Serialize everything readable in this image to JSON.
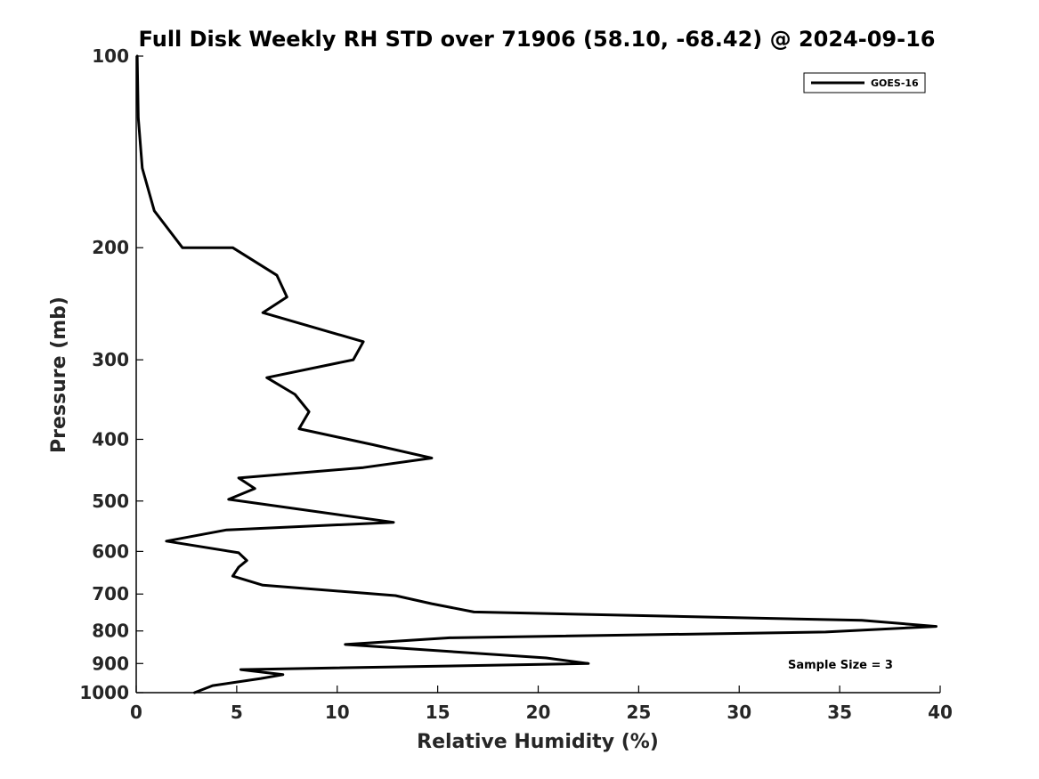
{
  "chart_data": {
    "type": "line",
    "title": "Full Disk Weekly RH STD over 71906 (58.10, -68.42) @ 2024-09-16",
    "xlabel": "Relative Humidity (%)",
    "ylabel": "Pressure (mb)",
    "xlim": [
      0,
      40
    ],
    "ylim": [
      100,
      1000
    ],
    "yscale": "log",
    "y_reversed": true,
    "xticks": [
      0,
      5,
      10,
      15,
      20,
      25,
      30,
      35,
      40
    ],
    "yticks": [
      100,
      200,
      300,
      400,
      500,
      600,
      700,
      800,
      900,
      1000
    ],
    "legend_position": "top-right",
    "grid": false,
    "series": [
      {
        "name": "GOES-16",
        "color": "#000000",
        "points": [
          [
            0.05,
            100
          ],
          [
            0.1,
            125
          ],
          [
            0.3,
            150
          ],
          [
            0.9,
            175
          ],
          [
            2.3,
            200
          ],
          [
            4.8,
            200
          ],
          [
            7.0,
            221
          ],
          [
            7.5,
            239
          ],
          [
            6.3,
            253
          ],
          [
            11.3,
            281
          ],
          [
            10.8,
            300
          ],
          [
            6.5,
            320
          ],
          [
            7.9,
            340
          ],
          [
            8.6,
            362
          ],
          [
            8.1,
            385
          ],
          [
            11.8,
            408
          ],
          [
            14.7,
            428
          ],
          [
            11.3,
            443
          ],
          [
            5.1,
            460
          ],
          [
            5.9,
            478
          ],
          [
            4.6,
            497
          ],
          [
            12.8,
            540
          ],
          [
            4.5,
            555
          ],
          [
            1.5,
            578
          ],
          [
            5.1,
            603
          ],
          [
            5.5,
            620
          ],
          [
            5.1,
            635
          ],
          [
            4.8,
            656
          ],
          [
            6.3,
            678
          ],
          [
            12.9,
            704
          ],
          [
            14.7,
            725
          ],
          [
            16.8,
            747
          ],
          [
            36.1,
            770
          ],
          [
            39.8,
            787
          ],
          [
            34.3,
            803
          ],
          [
            15.6,
            820
          ],
          [
            10.4,
            840
          ],
          [
            20.4,
            882
          ],
          [
            22.5,
            900
          ],
          [
            5.2,
            920
          ],
          [
            7.3,
            937
          ],
          [
            6.2,
            950
          ],
          [
            3.8,
            975
          ],
          [
            2.9,
            1000
          ]
        ]
      }
    ],
    "annotations": [
      "Sample Size = 3"
    ]
  }
}
